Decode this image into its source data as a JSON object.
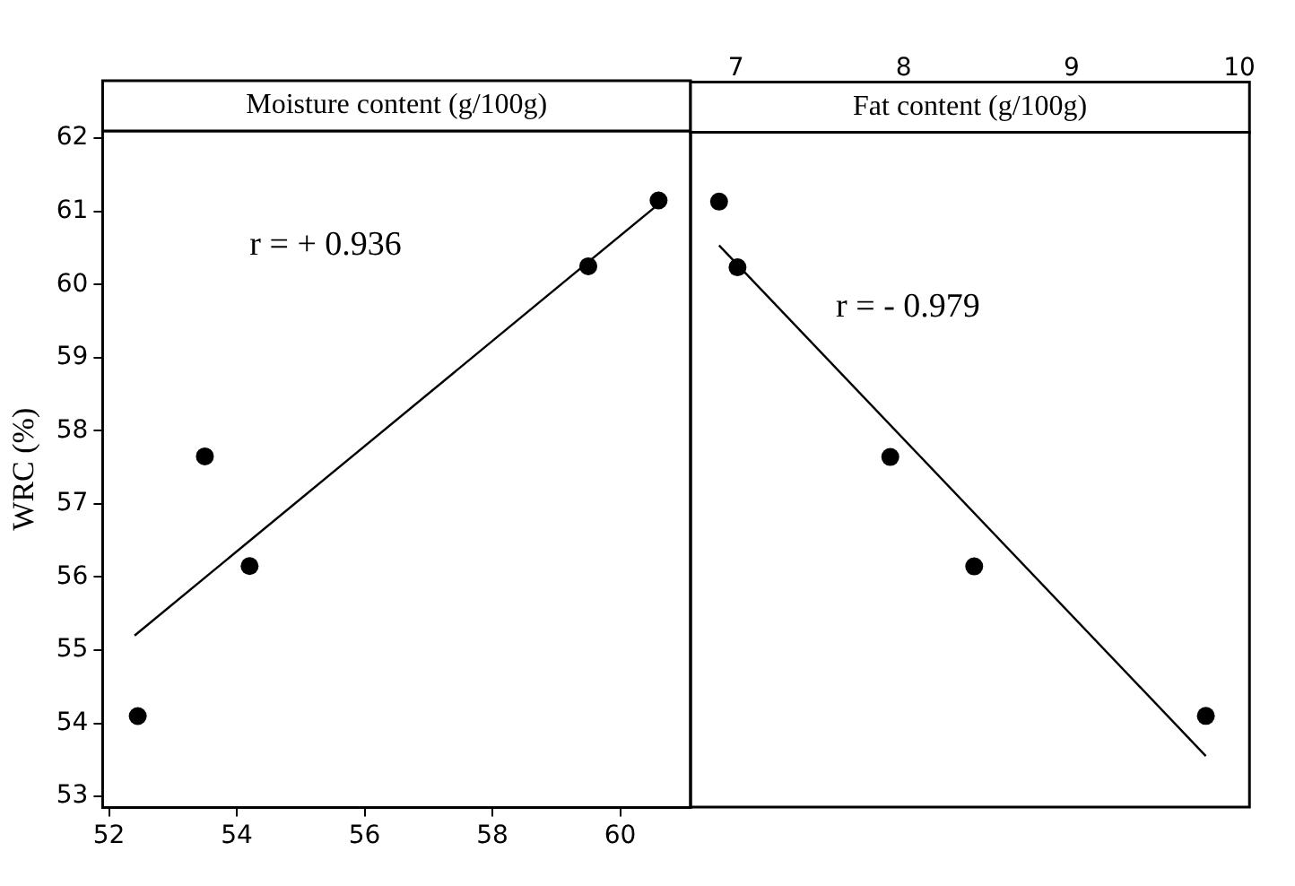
{
  "chart_data": [
    {
      "type": "scatter",
      "title": "Moisture content (g/100g)",
      "ylabel": "WRC (%)",
      "xlim": [
        51.9,
        61.1
      ],
      "xticks": [
        52,
        54,
        56,
        58,
        60
      ],
      "ylim": [
        52.85,
        62.1
      ],
      "yticks": [
        53,
        54,
        55,
        56,
        57,
        58,
        59,
        60,
        61,
        62
      ],
      "grid": false,
      "legend": false,
      "marker": "circle",
      "annotations": [
        "r = + 0.936"
      ],
      "series": [
        {
          "color": "#000000",
          "x": [
            52.45,
            53.5,
            54.2,
            59.5,
            60.6
          ],
          "values": [
            54.1,
            57.65,
            56.15,
            60.25,
            61.15
          ]
        },
        {
          "type": "line",
          "marker": "none",
          "color": "#000000",
          "x": [
            52.4,
            60.6
          ],
          "values": [
            55.2,
            61.1
          ]
        }
      ]
    },
    {
      "type": "scatter",
      "title": "Fat content (g/100g)",
      "xlim": [
        6.73,
        10.06
      ],
      "xticks": [
        7,
        8,
        9,
        10
      ],
      "ylim": [
        52.85,
        62.1
      ],
      "tick_labels": "x",
      "grid": false,
      "legend": false,
      "marker": "circle",
      "annotations": [
        "r = - 0.979"
      ],
      "series": [
        {
          "color": "#000000",
          "x": [
            6.9,
            7.01,
            7.92,
            8.42,
            9.8
          ],
          "values": [
            61.15,
            60.25,
            57.65,
            56.15,
            54.1
          ]
        },
        {
          "type": "line",
          "marker": "none",
          "color": "#000000",
          "x": [
            6.9,
            9.8
          ],
          "values": [
            60.55,
            53.55
          ]
        }
      ]
    }
  ]
}
